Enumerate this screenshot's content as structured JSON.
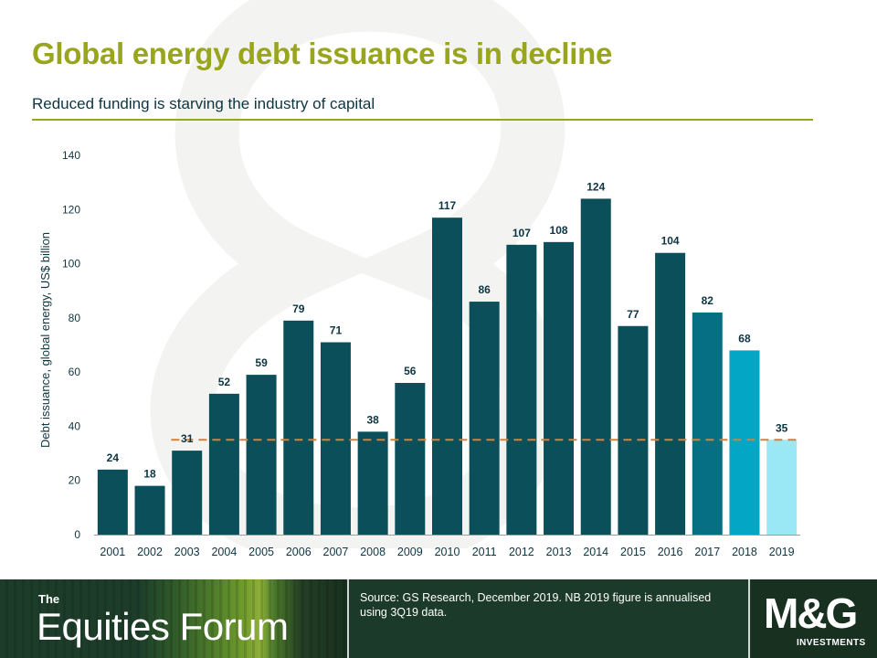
{
  "header": {
    "title": "Global energy debt issuance is in decline",
    "subtitle": "Reduced funding is starving the industry of capital"
  },
  "colors": {
    "accent": "#9aa51e",
    "bar_main": "#0b4f5a",
    "bar_2017": "#076f83",
    "bar_2018": "#03a6c4",
    "bar_2019": "#9ae8f5",
    "reference_line": "#d4823a"
  },
  "chart_data": {
    "type": "bar",
    "categories": [
      "2001",
      "2002",
      "2003",
      "2004",
      "2005",
      "2006",
      "2007",
      "2008",
      "2009",
      "2010",
      "2011",
      "2012",
      "2013",
      "2014",
      "2015",
      "2016",
      "2017",
      "2018",
      "2019"
    ],
    "values": [
      24,
      18,
      31,
      52,
      59,
      79,
      71,
      38,
      56,
      117,
      86,
      107,
      108,
      124,
      77,
      104,
      82,
      68,
      35
    ],
    "ylabel": "Debt issuance, global energy, US$ billion",
    "xlabel": "",
    "ylim": [
      0,
      140
    ],
    "yticks": [
      0,
      20,
      40,
      60,
      80,
      100,
      120,
      140
    ],
    "reference_line": {
      "value": 35,
      "style": "dashed"
    },
    "data_labels": true,
    "grid": false,
    "legend": "none"
  },
  "footer": {
    "brand_prefix": "The",
    "brand_name": "Equities Forum",
    "source": "Source: GS Research, December 2019. NB 2019 figure is annualised using 3Q19 data.",
    "logo_text": "M&G",
    "logo_subtext": "INVESTMENTS"
  }
}
